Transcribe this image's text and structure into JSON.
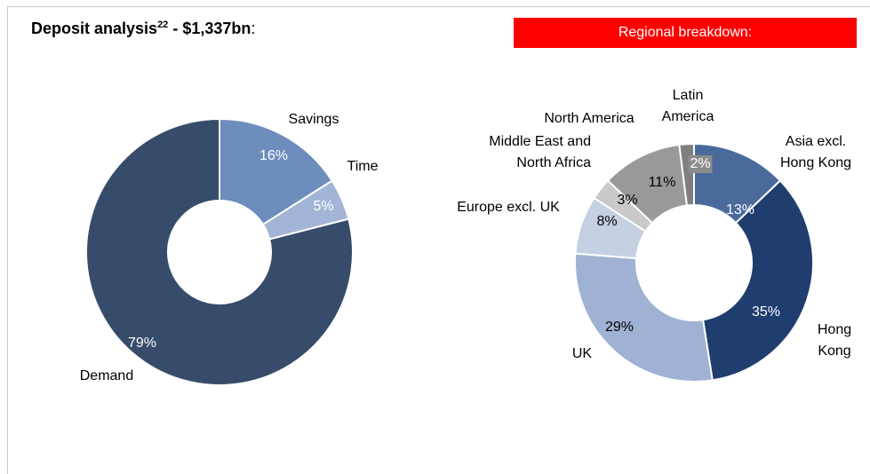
{
  "header": {
    "title": "Deposit analysis",
    "footnote": "22",
    "amount": "- $1,337bn",
    "punct": ":"
  },
  "chart_data": [
    {
      "type": "donut",
      "categories": [
        "Savings",
        "Time",
        "Demand"
      ],
      "values": [
        16,
        5,
        79
      ],
      "value_labels": [
        "16%",
        "5%",
        "79%"
      ],
      "colors": [
        "#6d8dbd",
        "#a3b5d6",
        "#374c6b"
      ]
    },
    {
      "type": "donut",
      "title": "Regional breakdown:",
      "categories": [
        "Asia excl. Hong Kong",
        "Hong Kong",
        "UK",
        "Europe excl. UK",
        "Middle East and North Africa",
        "North America",
        "Latin America"
      ],
      "values": [
        13,
        35,
        29,
        8,
        3,
        11,
        2
      ],
      "value_labels": [
        "13%",
        "35%",
        "29%",
        "8%",
        "3%",
        "11%",
        "2%"
      ],
      "colors": [
        "#4a6a9c",
        "#1f3d6e",
        "#a0b2d4",
        "#c5d0e3",
        "#c9c9c9",
        "#999999",
        "#7f7f7f"
      ]
    }
  ]
}
